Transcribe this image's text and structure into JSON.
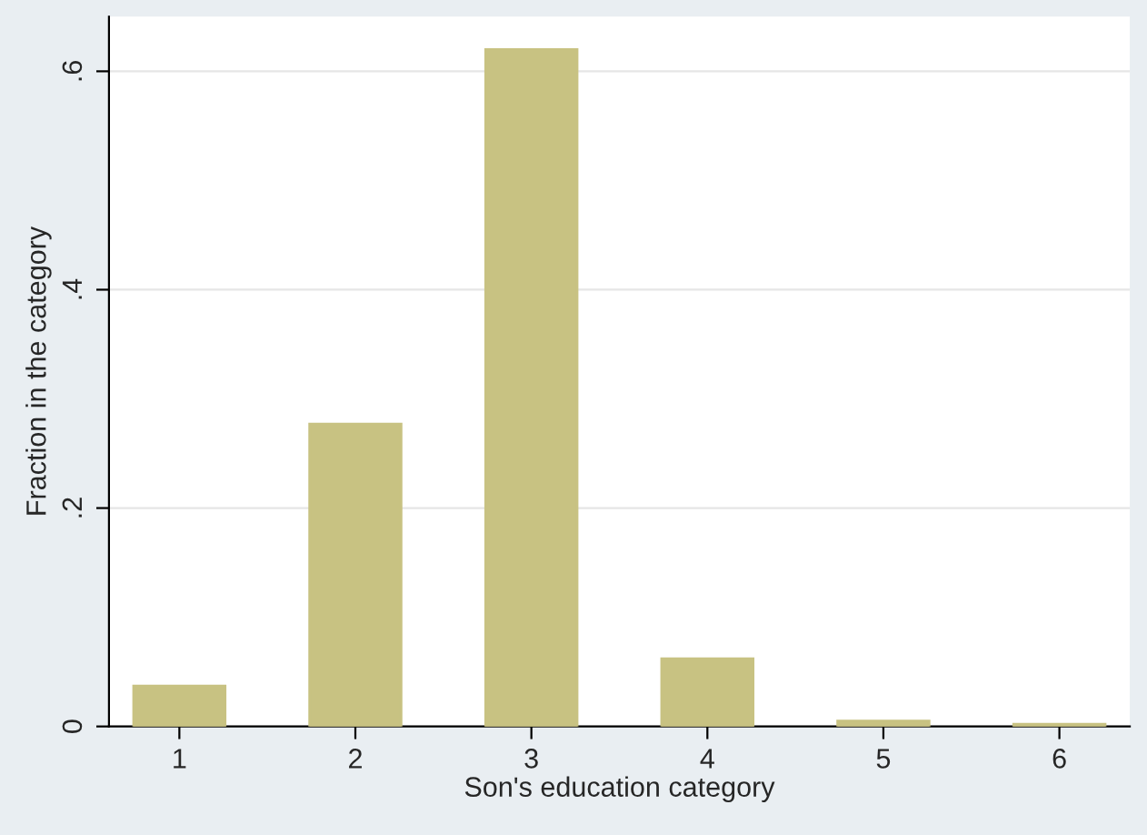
{
  "chart_data": {
    "type": "bar",
    "xlabel": "Son's education category",
    "ylabel": "Fraction in the category",
    "categories": [
      "1",
      "2",
      "3",
      "4",
      "5",
      "6"
    ],
    "values": [
      0.037,
      0.277,
      0.62,
      0.062,
      0.005,
      0.002
    ],
    "color": "#c8c282",
    "ylim": [
      0,
      0.65
    ],
    "yticks": [
      {
        "value": 0,
        "label": "0"
      },
      {
        "value": 0.2,
        "label": ".2"
      },
      {
        "value": 0.4,
        "label": ".4"
      },
      {
        "value": 0.6,
        "label": ".6"
      }
    ],
    "grid": "y",
    "legend": false
  }
}
